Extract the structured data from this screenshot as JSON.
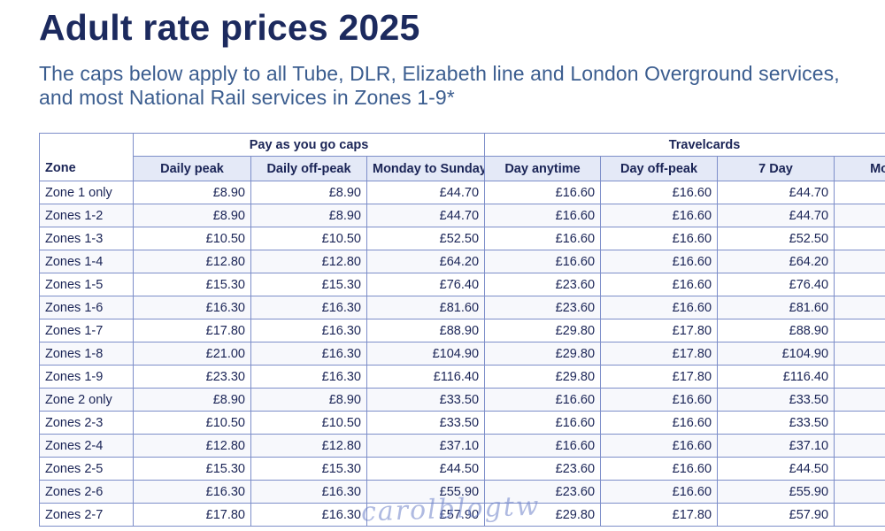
{
  "title": "Adult rate prices 2025",
  "subtitle": "The caps below apply to all Tube, DLR, Elizabeth line and London Overground services, and most National Rail services in Zones 1-9*",
  "table": {
    "groups": {
      "payg": "Pay as you go caps",
      "travelcards": "Travelcards"
    },
    "headers": {
      "zone": "Zone",
      "daily_peak": "Daily peak",
      "daily_off_peak": "Daily off-peak",
      "monday_to_sunday": "Monday to Sunday",
      "day_anytime": "Day anytime",
      "day_off_peak": "Day off-peak",
      "seven_day": "7 Day",
      "next_partial": "Mo"
    },
    "rows": [
      {
        "zone": "Zone 1 only",
        "daily_peak": "£8.90",
        "daily_off_peak": "£8.90",
        "mon_sun": "£44.70",
        "day_anytime": "£16.60",
        "day_off_peak": "£16.60",
        "seven_day": "£44.70"
      },
      {
        "zone": "Zones 1-2",
        "daily_peak": "£8.90",
        "daily_off_peak": "£8.90",
        "mon_sun": "£44.70",
        "day_anytime": "£16.60",
        "day_off_peak": "£16.60",
        "seven_day": "£44.70"
      },
      {
        "zone": "Zones 1-3",
        "daily_peak": "£10.50",
        "daily_off_peak": "£10.50",
        "mon_sun": "£52.50",
        "day_anytime": "£16.60",
        "day_off_peak": "£16.60",
        "seven_day": "£52.50"
      },
      {
        "zone": "Zones 1-4",
        "daily_peak": "£12.80",
        "daily_off_peak": "£12.80",
        "mon_sun": "£64.20",
        "day_anytime": "£16.60",
        "day_off_peak": "£16.60",
        "seven_day": "£64.20"
      },
      {
        "zone": "Zones 1-5",
        "daily_peak": "£15.30",
        "daily_off_peak": "£15.30",
        "mon_sun": "£76.40",
        "day_anytime": "£23.60",
        "day_off_peak": "£16.60",
        "seven_day": "£76.40"
      },
      {
        "zone": "Zones 1-6",
        "daily_peak": "£16.30",
        "daily_off_peak": "£16.30",
        "mon_sun": "£81.60",
        "day_anytime": "£23.60",
        "day_off_peak": "£16.60",
        "seven_day": "£81.60"
      },
      {
        "zone": "Zones 1-7",
        "daily_peak": "£17.80",
        "daily_off_peak": "£16.30",
        "mon_sun": "£88.90",
        "day_anytime": "£29.80",
        "day_off_peak": "£17.80",
        "seven_day": "£88.90"
      },
      {
        "zone": "Zones 1-8",
        "daily_peak": "£21.00",
        "daily_off_peak": "£16.30",
        "mon_sun": "£104.90",
        "day_anytime": "£29.80",
        "day_off_peak": "£17.80",
        "seven_day": "£104.90"
      },
      {
        "zone": "Zones 1-9",
        "daily_peak": "£23.30",
        "daily_off_peak": "£16.30",
        "mon_sun": "£116.40",
        "day_anytime": "£29.80",
        "day_off_peak": "£17.80",
        "seven_day": "£116.40"
      },
      {
        "zone": "Zone 2 only",
        "daily_peak": "£8.90",
        "daily_off_peak": "£8.90",
        "mon_sun": "£33.50",
        "day_anytime": "£16.60",
        "day_off_peak": "£16.60",
        "seven_day": "£33.50"
      },
      {
        "zone": "Zones 2-3",
        "daily_peak": "£10.50",
        "daily_off_peak": "£10.50",
        "mon_sun": "£33.50",
        "day_anytime": "£16.60",
        "day_off_peak": "£16.60",
        "seven_day": "£33.50"
      },
      {
        "zone": "Zones 2-4",
        "daily_peak": "£12.80",
        "daily_off_peak": "£12.80",
        "mon_sun": "£37.10",
        "day_anytime": "£16.60",
        "day_off_peak": "£16.60",
        "seven_day": "£37.10"
      },
      {
        "zone": "Zones 2-5",
        "daily_peak": "£15.30",
        "daily_off_peak": "£15.30",
        "mon_sun": "£44.50",
        "day_anytime": "£23.60",
        "day_off_peak": "£16.60",
        "seven_day": "£44.50"
      },
      {
        "zone": "Zones 2-6",
        "daily_peak": "£16.30",
        "daily_off_peak": "£16.30",
        "mon_sun": "£55.90",
        "day_anytime": "£23.60",
        "day_off_peak": "£16.60",
        "seven_day": "£55.90"
      },
      {
        "zone": "Zones 2-7",
        "daily_peak": "£17.80",
        "daily_off_peak": "£16.30",
        "mon_sun": "£57.90",
        "day_anytime": "£29.80",
        "day_off_peak": "£17.80",
        "seven_day": "£57.90"
      }
    ]
  },
  "watermark": "carolblogtw"
}
